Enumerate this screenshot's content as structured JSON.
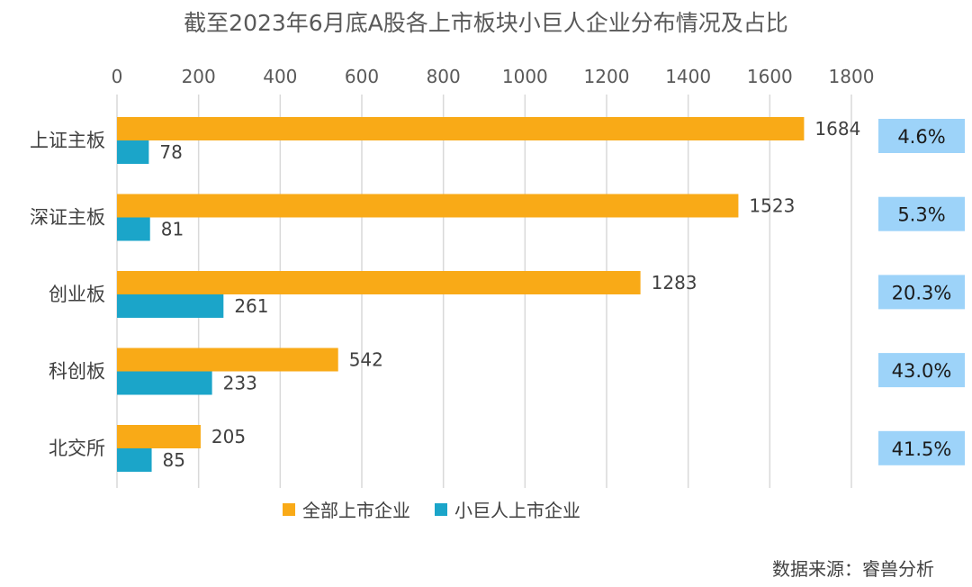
{
  "chart_data": {
    "type": "bar",
    "orientation": "horizontal",
    "title": "截至2023年6月底A股各上市板块小巨人企业分布情况及占比",
    "categories": [
      "上证主板",
      "深证主板",
      "创业板",
      "科创板",
      "北交所"
    ],
    "series": [
      {
        "name": "全部上市企业",
        "color": "#F9AA17",
        "values": [
          1684,
          1523,
          1283,
          542,
          205
        ]
      },
      {
        "name": "小巨人上市企业",
        "color": "#1BA5C9",
        "values": [
          78,
          81,
          261,
          233,
          85
        ]
      }
    ],
    "ratio_labels": [
      "4.6%",
      "5.3%",
      "20.3%",
      "43.0%",
      "41.5%"
    ],
    "ratio_box_color": "#9DD3F9",
    "xlim": [
      0,
      1800
    ],
    "xticks": [
      0,
      200,
      400,
      600,
      800,
      1000,
      1200,
      1400,
      1600,
      1800
    ],
    "x_axis_position": "top",
    "grid": true,
    "legend_position": "bottom"
  },
  "source_note": "数据来源：睿兽分析"
}
